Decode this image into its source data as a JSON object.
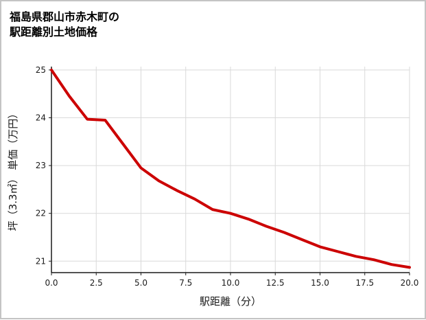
{
  "title": {
    "line1": "福島県郡山市赤木町の",
    "line2": "駅距離別土地価格"
  },
  "chart_data": {
    "type": "line",
    "title": "福島県郡山市赤木町の駅距離別土地価格",
    "xlabel": "駅距離（分）",
    "ylabel": "坪（3.3㎡） 単価（万円）",
    "x": [
      0,
      1,
      2,
      3,
      4,
      5,
      6,
      7,
      8,
      9,
      10,
      11,
      12,
      13,
      14,
      15,
      16,
      17,
      18,
      19,
      20
    ],
    "values": [
      25.0,
      24.45,
      23.97,
      23.95,
      23.45,
      22.95,
      22.68,
      22.48,
      22.3,
      22.08,
      22.0,
      21.88,
      21.73,
      21.6,
      21.45,
      21.3,
      21.2,
      21.1,
      21.03,
      20.93,
      20.87
    ],
    "xlim": [
      0,
      20
    ],
    "ylim": [
      20.76,
      25.07
    ],
    "xticks": [
      "0.0",
      "2.5",
      "5.0",
      "7.5",
      "10.0",
      "12.5",
      "15.0",
      "17.5",
      "20.0"
    ],
    "yticks": [
      "21",
      "22",
      "23",
      "24",
      "25"
    ],
    "grid": true,
    "legend": false,
    "line_color": "#cc0000",
    "grid_color": "#d9d9d9",
    "axis_color": "#1a1a1a",
    "text_color": "#1a1a1a"
  }
}
